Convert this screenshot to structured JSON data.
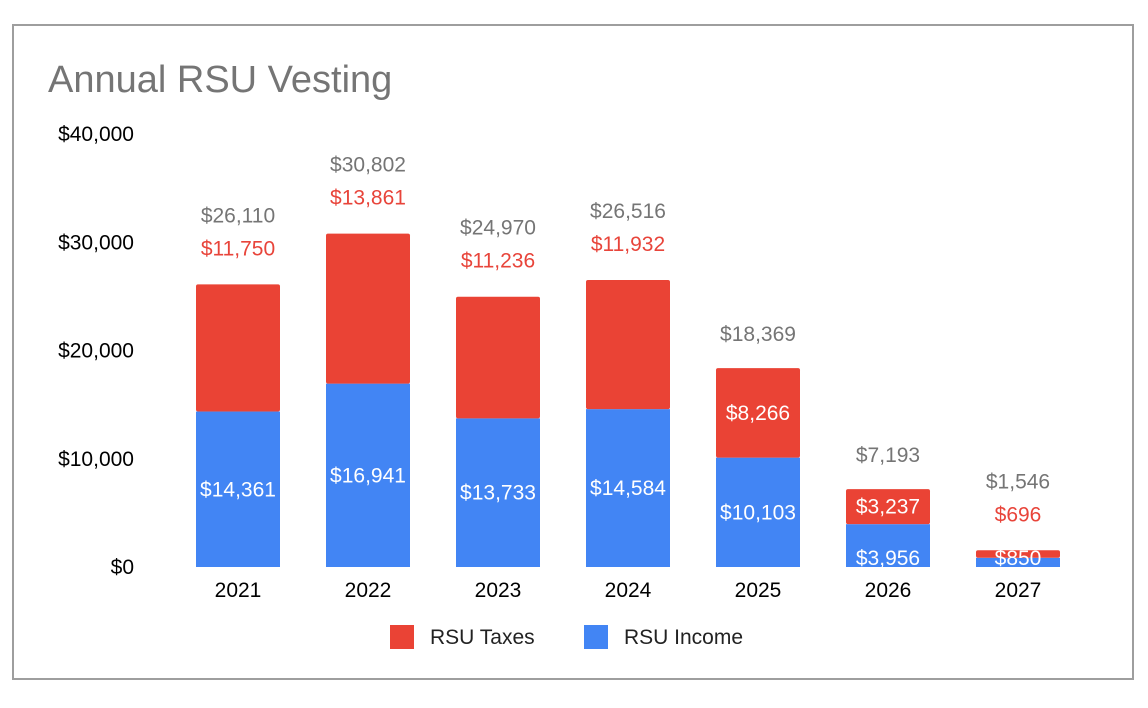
{
  "chart_data": {
    "type": "bar",
    "stacked": true,
    "title": "Annual RSU Vesting",
    "categories": [
      "2021",
      "2022",
      "2023",
      "2024",
      "2025",
      "2026",
      "2027"
    ],
    "series": [
      {
        "name": "RSU Income",
        "color": "#4285f4",
        "values": [
          14361,
          16941,
          13733,
          14584,
          10103,
          3956,
          850
        ],
        "labels": [
          "$14,361",
          "$16,941",
          "$13,733",
          "$14,584",
          "$10,103",
          "$3,956",
          "$850"
        ]
      },
      {
        "name": "RSU Taxes",
        "color": "#ea4335",
        "values": [
          11750,
          13861,
          11236,
          11932,
          8266,
          3237,
          696
        ],
        "labels": [
          "$11,750",
          "$13,861",
          "$11,236",
          "$11,932",
          "$8,266",
          "$3,237",
          "$696"
        ]
      }
    ],
    "totals": [
      26110,
      30802,
      24970,
      26516,
      18369,
      7193,
      1546
    ],
    "total_labels": [
      "$26,110",
      "$30,802",
      "$24,970",
      "$26,516",
      "$18,369",
      "$7,193",
      "$1,546"
    ],
    "tax_label_position": [
      "above",
      "above",
      "above",
      "above",
      "inside",
      "inside",
      "above"
    ],
    "ylim": [
      0,
      40000
    ],
    "yticks": [
      0,
      10000,
      20000,
      30000,
      40000
    ],
    "ytick_labels": [
      "$0",
      "$10,000",
      "$20,000",
      "$30,000",
      "$40,000"
    ],
    "xlabel": "",
    "ylabel": "",
    "grid": false,
    "legend": {
      "placement": "bottom",
      "order": [
        "RSU Taxes",
        "RSU Income"
      ]
    }
  }
}
